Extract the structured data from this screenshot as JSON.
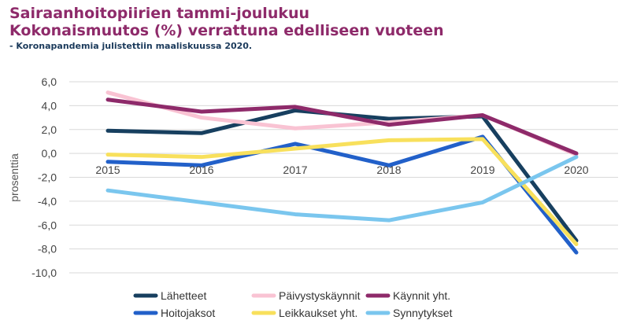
{
  "chart_data": {
    "type": "line",
    "title": "Sairaanhoitopiirien tammi-joulukuu",
    "title2": "Kokonaismuutos (%) verrattuna edelliseen vuoteen",
    "subtitle": "- Koronapandemia julistettiin maaliskuussa 2020.",
    "ylabel": "prosenttia",
    "xlabel": "",
    "ylim": [
      -10,
      6
    ],
    "y_ticks": [
      "6,0",
      "4,0",
      "2,0",
      "0,0",
      "-2,0",
      "-4,0",
      "-6,0",
      "-8,0",
      "-10,0"
    ],
    "categories": [
      "2015",
      "2016",
      "2017",
      "2018",
      "2019",
      "2020"
    ],
    "grid": true,
    "legend_position": "bottom",
    "series": [
      {
        "name": "Lähetteet",
        "color": "#173f5f",
        "values": [
          1.9,
          1.7,
          3.6,
          2.9,
          3.1,
          -7.3
        ]
      },
      {
        "name": "Päivystyskäynnit",
        "color": "#f9c3d3",
        "values": [
          5.1,
          3.0,
          2.1,
          2.6,
          3.2,
          -0.1
        ]
      },
      {
        "name": "Käynnit yht.",
        "color": "#8e2a6a",
        "values": [
          4.5,
          3.5,
          3.9,
          2.4,
          3.2,
          0.0
        ]
      },
      {
        "name": "Hoitojaksot",
        "color": "#2260c9",
        "values": [
          -0.7,
          -1.0,
          0.8,
          -1.0,
          1.4,
          -8.3
        ]
      },
      {
        "name": "Leikkaukset yht.",
        "color": "#f8e05c",
        "values": [
          -0.1,
          -0.3,
          0.4,
          1.1,
          1.2,
          -7.6
        ]
      },
      {
        "name": "Synnytykset",
        "color": "#7ac6ee",
        "values": [
          -3.1,
          -4.1,
          -5.1,
          -5.6,
          -4.1,
          -0.3
        ]
      }
    ]
  }
}
